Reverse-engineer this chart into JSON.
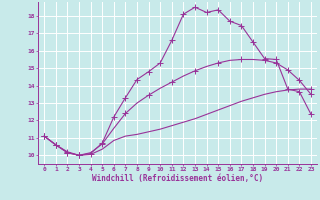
{
  "xlabel": "Windchill (Refroidissement éolien,°C)",
  "bg_color": "#c8eaea",
  "line_color": "#993399",
  "grid_color": "#ffffff",
  "xlim": [
    -0.5,
    23.5
  ],
  "ylim": [
    9.5,
    18.8
  ],
  "xticks": [
    0,
    1,
    2,
    3,
    4,
    5,
    6,
    7,
    8,
    9,
    10,
    11,
    12,
    13,
    14,
    15,
    16,
    17,
    18,
    19,
    20,
    21,
    22,
    23
  ],
  "yticks": [
    10,
    11,
    12,
    13,
    14,
    15,
    16,
    17,
    18
  ],
  "line1_x": [
    0,
    1,
    2,
    3,
    4,
    5,
    6,
    7,
    8,
    9,
    10,
    11,
    12,
    13,
    14,
    15,
    16,
    17,
    18,
    19,
    20,
    21,
    22,
    23
  ],
  "line1_y": [
    11.1,
    10.6,
    10.2,
    10.0,
    10.05,
    10.35,
    10.85,
    11.1,
    11.2,
    11.35,
    11.5,
    11.7,
    11.9,
    12.1,
    12.35,
    12.6,
    12.85,
    13.1,
    13.3,
    13.5,
    13.65,
    13.75,
    13.8,
    13.8
  ],
  "line2_x": [
    0,
    1,
    2,
    3,
    4,
    5,
    6,
    7,
    8,
    9,
    10,
    11,
    12,
    13,
    14,
    15,
    16,
    17,
    18,
    19,
    20,
    21,
    22,
    23
  ],
  "line2_y": [
    11.1,
    10.6,
    10.15,
    10.0,
    10.15,
    10.65,
    11.55,
    12.4,
    13.0,
    13.45,
    13.85,
    14.2,
    14.55,
    14.85,
    15.1,
    15.3,
    15.45,
    15.5,
    15.5,
    15.45,
    15.3,
    14.9,
    14.3,
    13.5
  ],
  "line3_x": [
    0,
    1,
    2,
    3,
    4,
    5,
    6,
    7,
    8,
    9,
    10,
    11,
    12,
    13,
    14,
    15,
    16,
    17,
    18,
    19,
    20,
    21,
    22,
    23
  ],
  "line3_y": [
    11.1,
    10.6,
    10.15,
    10.0,
    10.1,
    10.7,
    12.2,
    13.3,
    14.35,
    14.8,
    15.3,
    16.6,
    18.1,
    18.5,
    18.2,
    18.35,
    17.7,
    17.45,
    16.5,
    15.55,
    15.5,
    13.8,
    13.65,
    12.35
  ],
  "marker_line3_x": [
    0,
    1,
    2,
    3,
    4,
    5,
    6,
    7,
    8,
    9,
    10,
    11,
    12,
    13,
    14,
    15,
    16,
    17,
    18,
    19,
    20,
    21,
    22,
    23
  ],
  "marker_line2_x": [
    0,
    2,
    3,
    5,
    7,
    9,
    11,
    13,
    15,
    17,
    19,
    21,
    23
  ],
  "marker_line1_x": [
    0,
    2,
    3,
    23
  ]
}
